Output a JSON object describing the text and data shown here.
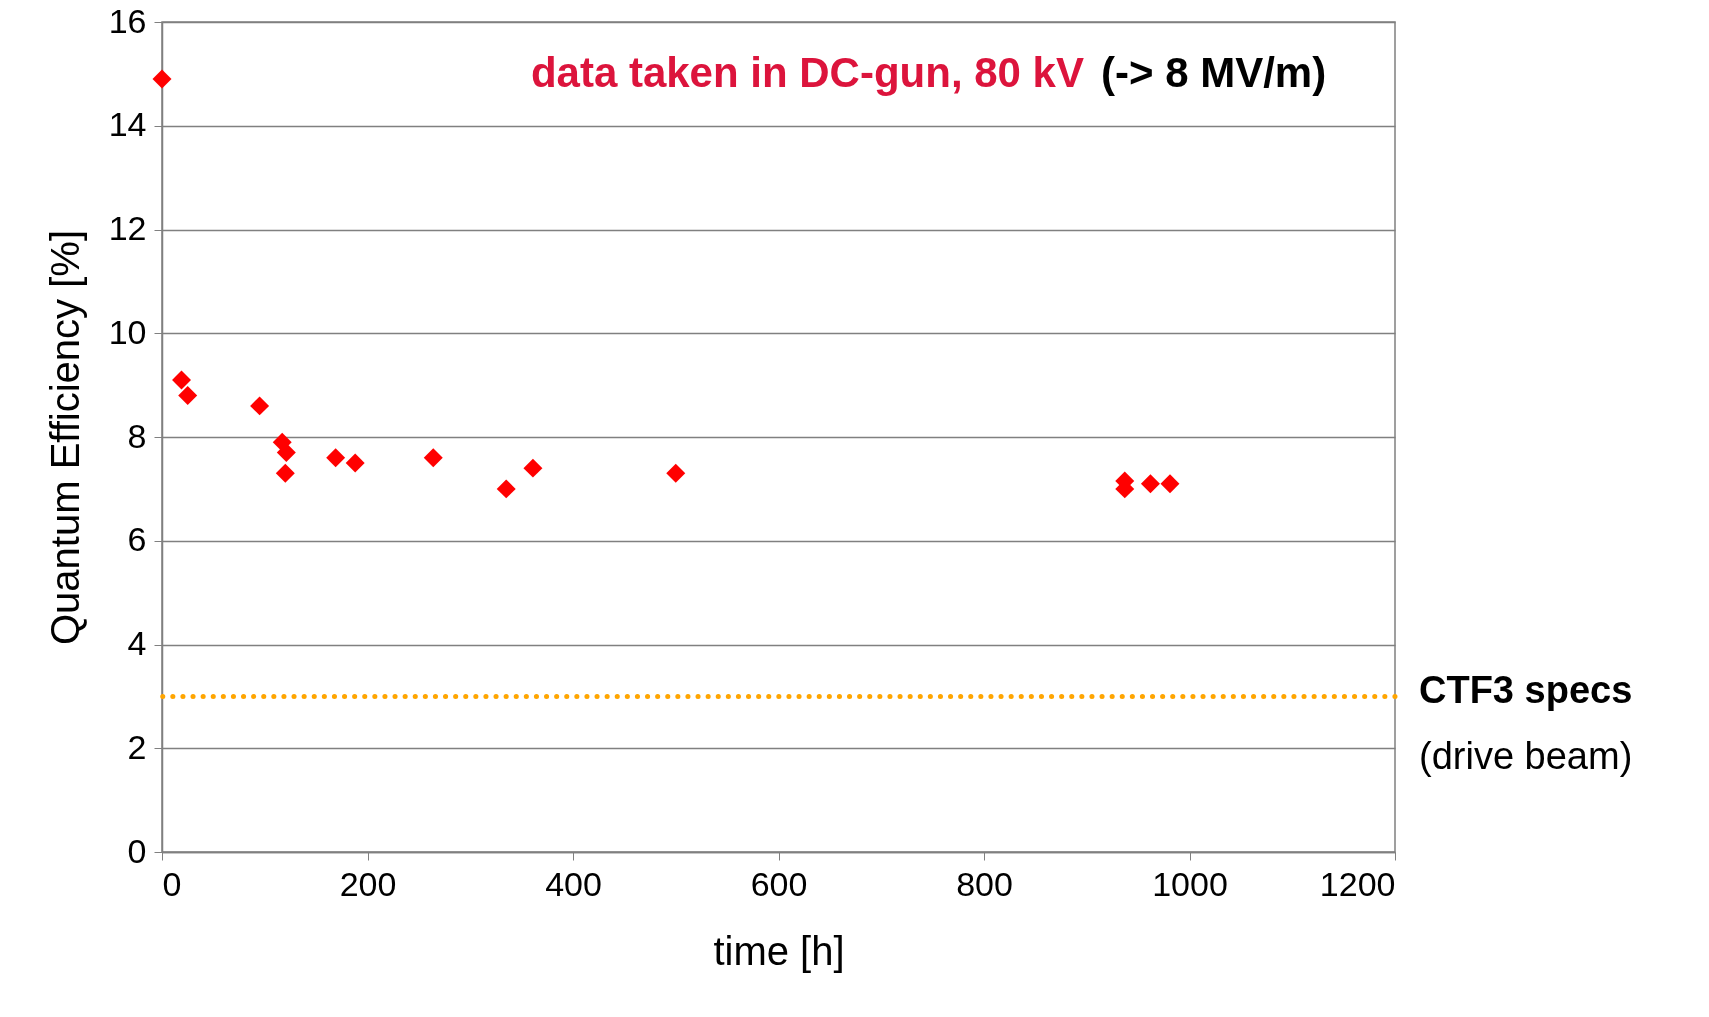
{
  "chart_data": {
    "type": "scatter",
    "xlabel": "time [h]",
    "ylabel": "Quantum Efficiency [%]",
    "x": [
      0,
      19,
      25,
      95,
      117,
      121,
      120,
      169,
      188,
      264,
      335,
      361,
      500,
      937,
      937,
      962,
      981
    ],
    "series": [
      {
        "color": "#ff0000",
        "values": [
          14.9,
          9.1,
          8.8,
          8.6,
          7.9,
          7.7,
          7.3,
          7.6,
          7.5,
          7.6,
          7.0,
          7.4,
          7.3,
          7.15,
          7.0,
          7.1,
          7.1
        ]
      }
    ],
    "xlim": [
      0,
      1200
    ],
    "ylim": [
      0,
      16
    ],
    "xticks": [
      0,
      200,
      400,
      600,
      800,
      1000,
      1200
    ],
    "yticks": [
      0,
      2,
      4,
      6,
      8,
      10,
      12,
      14,
      16
    ],
    "grid": "y",
    "marker": "diamond",
    "ref_lines": [
      {
        "axis": "y",
        "value": 3,
        "label": "CTF3 specs",
        "color": "#ffa500",
        "line_style": "dotted"
      }
    ],
    "annotations": [
      "data taken in DC-gun, 80 kV",
      "(-> 8 MV/m)",
      "(drive beam)"
    ]
  }
}
